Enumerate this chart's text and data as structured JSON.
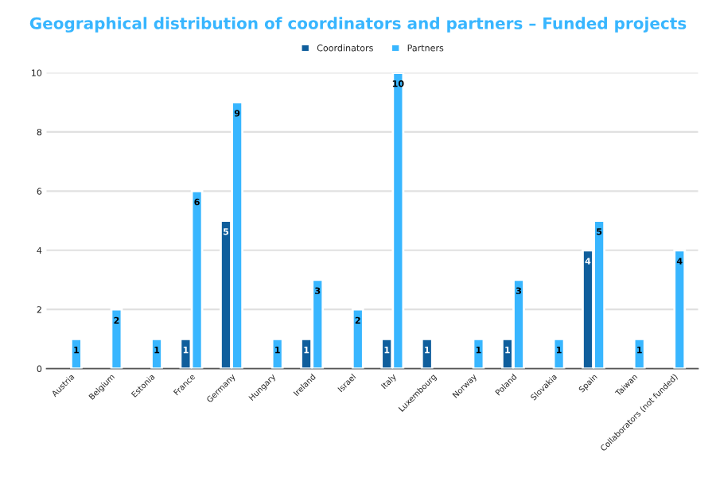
{
  "chart_data": {
    "type": "bar",
    "title": "Geographical distribution of coordinators and partners – Funded projects",
    "categories": [
      "Austria",
      "Belgium",
      "Estonia",
      "France",
      "Germany",
      "Hungary",
      "Ireland",
      "Israel",
      "Italy",
      "Luxembourg",
      "Norway",
      "Poland",
      "Slovakia",
      "Spain",
      "Taiwan",
      "Collaborators (not funded)"
    ],
    "series": [
      {
        "name": "Coordinators",
        "color": "#0f5e9c",
        "values": [
          null,
          null,
          null,
          1,
          5,
          null,
          1,
          null,
          1,
          1,
          null,
          1,
          null,
          4,
          null,
          null
        ]
      },
      {
        "name": "Partners",
        "color": "#38b6ff",
        "values": [
          1,
          2,
          1,
          6,
          9,
          1,
          3,
          2,
          10,
          null,
          1,
          3,
          1,
          5,
          1,
          4
        ]
      }
    ],
    "ylim": [
      0,
      10
    ],
    "yticks": [
      0,
      2,
      4,
      6,
      8,
      10
    ],
    "grid": "y",
    "legend": "top",
    "data_labels": true
  }
}
